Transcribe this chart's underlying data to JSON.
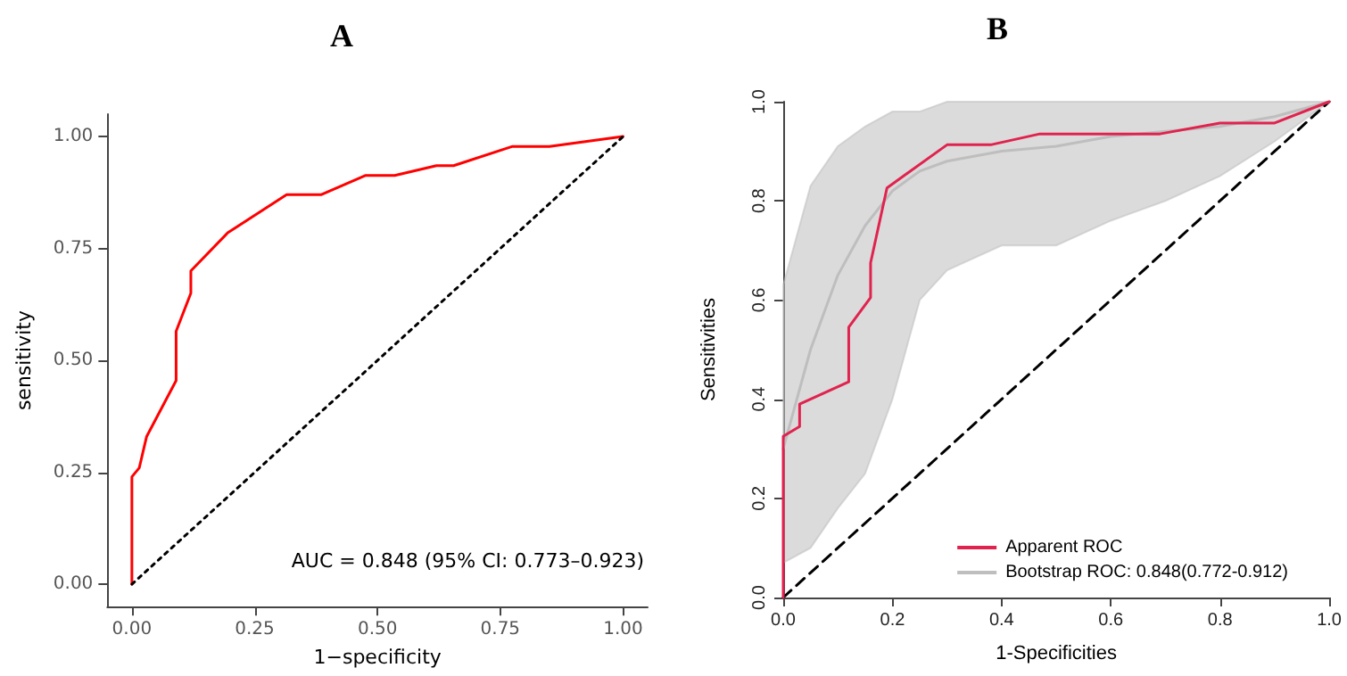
{
  "chart_data": [
    {
      "type": "line",
      "title": "A",
      "xlabel": "1−specificity",
      "ylabel": "sensitivity",
      "annotations": [
        "AUC = 0.848 (95% CI: 0.773–0.923)"
      ],
      "xlim": [
        -0.05,
        1.05
      ],
      "ylim": [
        -0.05,
        1.05
      ],
      "xticks": [
        {
          "value": 0,
          "label": "0.00"
        },
        {
          "value": 0.25,
          "label": "0.25"
        },
        {
          "value": 0.5,
          "label": "0.50"
        },
        {
          "value": 0.75,
          "label": "0.75"
        },
        {
          "value": 1,
          "label": "1.00"
        }
      ],
      "yticks": [
        {
          "value": 0,
          "label": "0.00"
        },
        {
          "value": 0.25,
          "label": "0.25"
        },
        {
          "value": 0.5,
          "label": "0.50"
        },
        {
          "value": 0.75,
          "label": "0.75"
        },
        {
          "value": 1,
          "label": "1.00"
        }
      ],
      "grid": false,
      "legend": false,
      "marker": "none",
      "series": [
        {
          "color": "#ff0000",
          "line_style": "solid",
          "x": [
            0,
            0,
            0.015,
            0.03,
            0.09,
            0.09,
            0.12,
            0.12,
            0.195,
            0.315,
            0.385,
            0.475,
            0.535,
            0.62,
            0.655,
            0.775,
            0.85,
            1
          ],
          "values": [
            0,
            0.24,
            0.26,
            0.33,
            0.455,
            0.565,
            0.65,
            0.7,
            0.785,
            0.87,
            0.87,
            0.913,
            0.913,
            0.935,
            0.935,
            0.978,
            0.978,
            1
          ]
        },
        {
          "color": "#000000",
          "line_style": "dotted",
          "x": [
            0,
            1
          ],
          "values": [
            0,
            1
          ]
        }
      ]
    },
    {
      "type": "line",
      "title": "B",
      "xlabel": "1-Specificities",
      "ylabel": "Sensitivities",
      "xlim": [
        0,
        1
      ],
      "ylim": [
        0,
        1
      ],
      "xticks": [
        {
          "value": 0,
          "label": "0.0"
        },
        {
          "value": 0.2,
          "label": "0.2"
        },
        {
          "value": 0.4,
          "label": "0.4"
        },
        {
          "value": 0.6,
          "label": "0.6"
        },
        {
          "value": 0.8,
          "label": "0.8"
        },
        {
          "value": 1,
          "label": "1.0"
        }
      ],
      "yticks": [
        {
          "value": 0,
          "label": "0.0"
        },
        {
          "value": 0.2,
          "label": "0.2"
        },
        {
          "value": 0.4,
          "label": "0.4"
        },
        {
          "value": 0.6,
          "label": "0.6"
        },
        {
          "value": 0.8,
          "label": "0.8"
        },
        {
          "value": 1,
          "label": "1.0"
        }
      ],
      "grid": false,
      "legend": "bottom right",
      "marker": "none",
      "series": [
        {
          "name": "Bootstrap ROC: 0.848(0.772-0.912)",
          "color": "#bebebe",
          "line_style": "solid",
          "x": [
            0,
            0.05,
            0.1,
            0.15,
            0.2,
            0.25,
            0.3,
            0.4,
            0.5,
            0.6,
            0.7,
            0.8,
            0.9,
            1
          ],
          "values": [
            0.3,
            0.5,
            0.65,
            0.75,
            0.82,
            0.86,
            0.88,
            0.9,
            0.91,
            0.93,
            0.94,
            0.95,
            0.97,
            1
          ],
          "lower": [
            0.07,
            0.1,
            0.18,
            0.25,
            0.4,
            0.6,
            0.66,
            0.71,
            0.71,
            0.76,
            0.8,
            0.85,
            0.92,
            1
          ],
          "upper": [
            0.63,
            0.83,
            0.91,
            0.95,
            0.98,
            0.98,
            1,
            1,
            1,
            1,
            1,
            1,
            1,
            1
          ]
        },
        {
          "name": "Apparent ROC",
          "color": "#e0234e",
          "line_style": "solid",
          "x": [
            0,
            0,
            0.03,
            0.03,
            0.12,
            0.12,
            0.16,
            0.16,
            0.19,
            0.3,
            0.38,
            0.47,
            0.69,
            0.8,
            0.9,
            1
          ],
          "values": [
            0,
            0.325,
            0.345,
            0.39,
            0.435,
            0.545,
            0.605,
            0.675,
            0.826,
            0.913,
            0.913,
            0.935,
            0.935,
            0.957,
            0.957,
            1
          ]
        },
        {
          "color": "#000000",
          "line_style": "dashed",
          "x": [
            0,
            1
          ],
          "values": [
            0,
            1
          ]
        }
      ]
    }
  ]
}
